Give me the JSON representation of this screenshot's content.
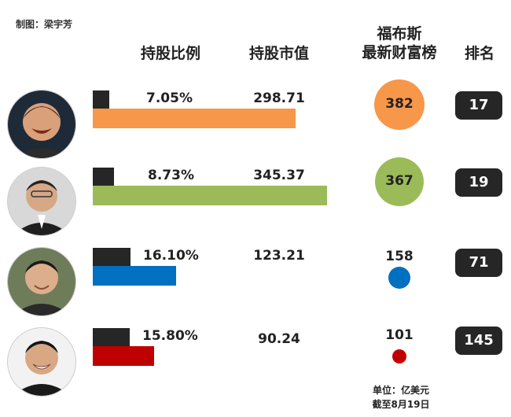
{
  "credit": "制图：梁宇芳",
  "headers": {
    "share": "持股比例",
    "value": "持股市值",
    "wealth_line1": "福布斯",
    "wealth_line2": "最新财富榜",
    "rank": "排名"
  },
  "footnote": {
    "unit": "单位：亿美元",
    "date": "截至8月19日"
  },
  "colors": {
    "row1": "#f7974a",
    "row2": "#9bbb59",
    "row3": "#0070c0",
    "row4": "#c00000",
    "black_bar": "#262626"
  },
  "chart_data": {
    "type": "bar",
    "categories": [
      "1",
      "2",
      "3",
      "4"
    ],
    "share_labels": [
      "7.05%",
      "8.73%",
      "16.10%",
      "15.80%"
    ],
    "share_pct": [
      7.05,
      8.73,
      16.1,
      15.8
    ],
    "market_value": [
      298.71,
      345.37,
      123.21,
      90.24
    ],
    "market_value_labels": [
      "298.71",
      "345.37",
      "123.21",
      "90.24"
    ],
    "forbes_wealth": [
      382,
      367,
      158,
      101
    ],
    "forbes_wealth_labels": [
      "382",
      "367",
      "158",
      "101"
    ],
    "forbes_rank": [
      17,
      19,
      71,
      145
    ],
    "forbes_rank_labels": [
      "17",
      "19",
      "71",
      "145"
    ]
  }
}
